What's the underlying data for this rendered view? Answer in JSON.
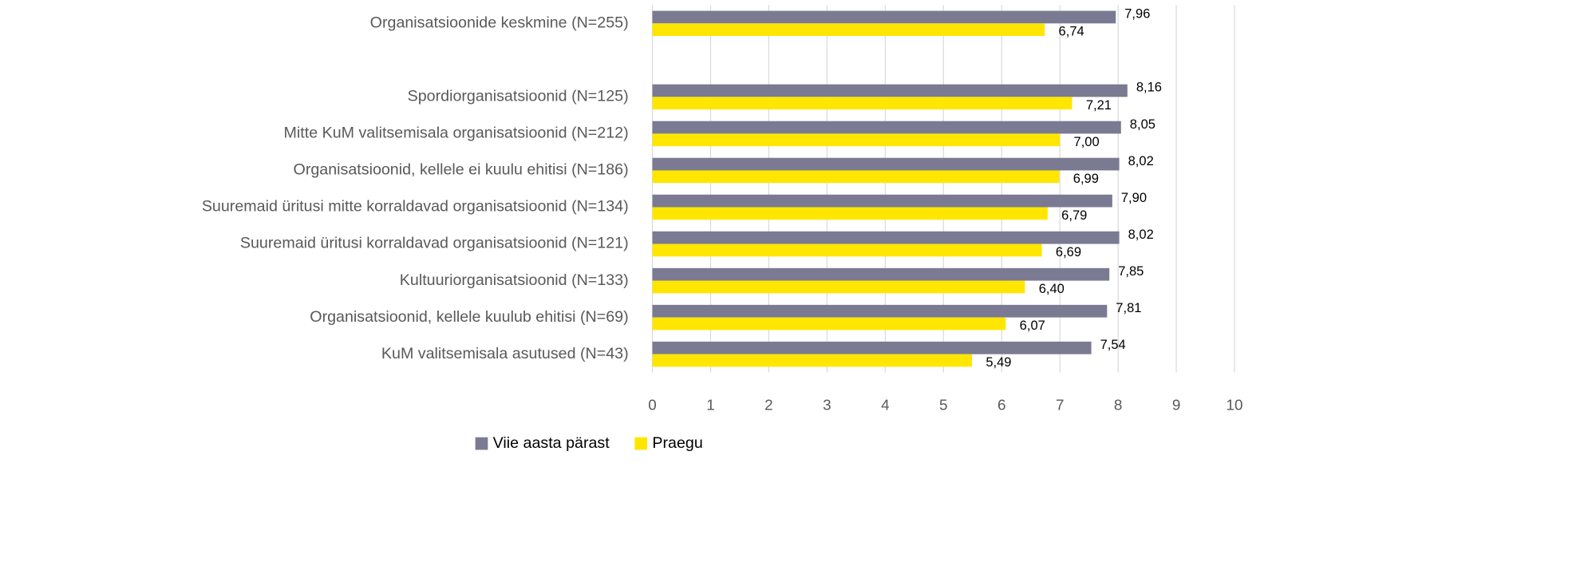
{
  "chart_data": {
    "type": "hbar",
    "categories": [
      "Organisatsioonide keskmine (N=255)",
      null,
      "Spordiorganisatsioonid (N=125)",
      "Mitte KuM valitsemisala organisatsioonid (N=212)",
      "Organisatsioonid, kellele ei kuulu ehitisi (N=186)",
      "Suuremaid üritusi mitte korraldavad organisatsioonid (N=134)",
      "Suuremaid üritusi korraldavad organisatsioonid (N=121)",
      "Kultuuriorganisatsioonid (N=133)",
      "Organisatsioonid, kellele kuulub ehitisi (N=69)",
      "KuM valitsemisala asutused (N=43)"
    ],
    "series": [
      {
        "name": "Viie aasta pärast",
        "color": "#7a7a92",
        "values": [
          7.96,
          null,
          8.16,
          8.05,
          8.02,
          7.9,
          8.02,
          7.85,
          7.81,
          7.54
        ],
        "value_labels": [
          "7,96",
          null,
          "8,16",
          "8,05",
          "8,02",
          "7,90",
          "8,02",
          "7,85",
          "7,81",
          "7,54"
        ]
      },
      {
        "name": "Praegu",
        "color": "#ffe600",
        "values": [
          6.74,
          null,
          7.21,
          7.0,
          6.99,
          6.79,
          6.69,
          6.4,
          6.07,
          5.49
        ],
        "value_labels": [
          "6,74",
          null,
          "7,21",
          "7,00",
          "6,99",
          "6,79",
          "6,69",
          "6,40",
          "6,07",
          "5,49"
        ]
      }
    ],
    "xlim": [
      0,
      10
    ],
    "xticks": [
      0,
      1,
      2,
      3,
      4,
      5,
      6,
      7,
      8,
      9,
      10
    ],
    "grid": true,
    "legend": "bottom"
  }
}
